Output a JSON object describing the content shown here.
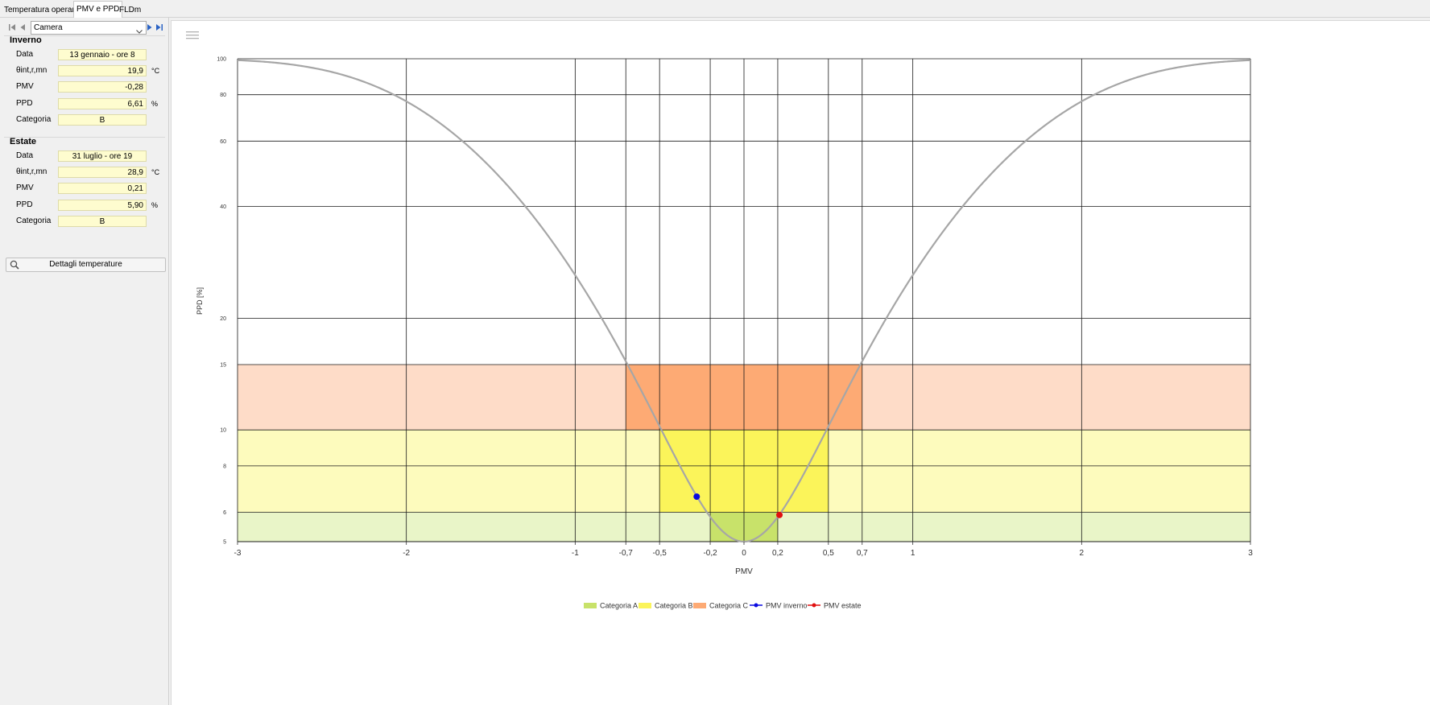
{
  "tabs": [
    {
      "label": "Temperatura operante",
      "active": false
    },
    {
      "label": "PMV e PPD",
      "active": true
    },
    {
      "label": "FLDm",
      "active": false
    }
  ],
  "nav": {
    "room": "Camera"
  },
  "winter": {
    "title": "Inverno",
    "rows": [
      {
        "label": "Data",
        "value": "13 gennaio - ore 8",
        "unit": ""
      },
      {
        "label": "θint,r,mn",
        "value": "19,9",
        "unit": "°C"
      },
      {
        "label": "PMV",
        "value": "-0,28",
        "unit": ""
      },
      {
        "label": "PPD",
        "value": "6,61",
        "unit": "%"
      },
      {
        "label": "Categoria",
        "value": "B",
        "unit": ""
      }
    ]
  },
  "summer": {
    "title": "Estate",
    "rows": [
      {
        "label": "Data",
        "value": "31 luglio - ore 19",
        "unit": ""
      },
      {
        "label": "θint,r,mn",
        "value": "28,9",
        "unit": "°C"
      },
      {
        "label": "PMV",
        "value": "0,21",
        "unit": ""
      },
      {
        "label": "PPD",
        "value": "5,90",
        "unit": "%"
      },
      {
        "label": "Categoria",
        "value": "B",
        "unit": ""
      }
    ]
  },
  "details_button": "Dettagli temperature",
  "icons": {
    "menu": "hamburger-menu-icon",
    "search": "magnifier-icon"
  },
  "chart_data": {
    "type": "line",
    "xlabel": "PMV",
    "ylabel": "PPD [%]",
    "xlim": [
      -3,
      3
    ],
    "ylim": [
      5,
      100
    ],
    "y_scale": "log",
    "x_ticks": [
      -3,
      -2,
      -1,
      -0.7,
      -0.5,
      -0.2,
      0,
      0.2,
      0.5,
      0.7,
      1,
      2,
      3
    ],
    "x_tick_labels": [
      "-3",
      "-2",
      "-1",
      "-0,7",
      "-0,5",
      "-0,2",
      "0",
      "0,2",
      "0,5",
      "0,7",
      "1",
      "2",
      "3"
    ],
    "y_ticks": [
      5,
      6,
      8,
      10,
      15,
      20,
      40,
      60,
      80,
      100
    ],
    "y_tick_labels": [
      "5",
      "6",
      "8",
      "10",
      "15",
      "20",
      "40",
      "60",
      "80",
      "100"
    ],
    "grid": true,
    "legend_position": "bottom",
    "curve": {
      "name": "PPD",
      "formula": "100 - 95*exp(-0.03353*PMV^4 - 0.2179*PMV^2)",
      "color": "#a6a6a6"
    },
    "categories": [
      {
        "name": "Categoria A",
        "pmv_range": [
          -0.2,
          0.2
        ],
        "ppd_max": 6,
        "color": "#c8e26a",
        "band_color": "#e9f5c8"
      },
      {
        "name": "Categoria B",
        "pmv_range": [
          -0.5,
          0.5
        ],
        "ppd_max": 10,
        "color": "#fbf45a",
        "band_color": "#fdfbbd"
      },
      {
        "name": "Categoria C",
        "pmv_range": [
          -0.7,
          0.7
        ],
        "ppd_max": 15,
        "color": "#fdaa74",
        "band_color": "#fedcc8"
      }
    ],
    "points": [
      {
        "name": "PMV inverno",
        "x": -0.28,
        "y": 6.61,
        "color": "#0a0ae0"
      },
      {
        "name": "PMV estate",
        "x": 0.21,
        "y": 5.9,
        "color": "#e01010"
      }
    ]
  }
}
